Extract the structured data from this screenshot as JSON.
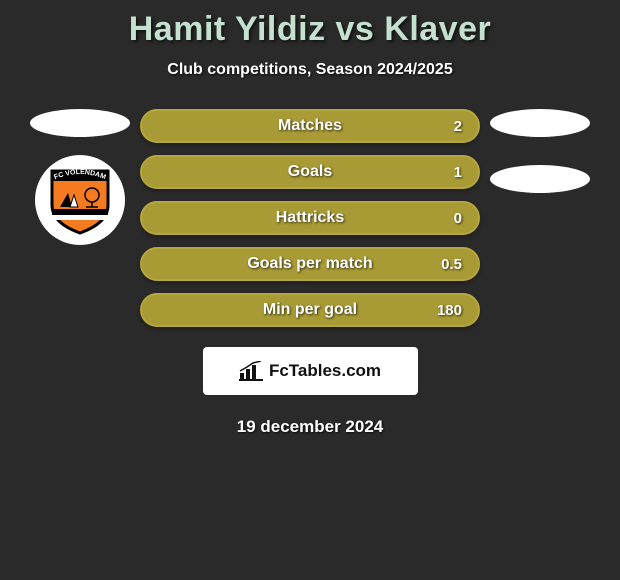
{
  "title": "Hamit Yildiz vs Klaver",
  "subtitle": "Club competitions, Season 2024/2025",
  "date": "19 december 2024",
  "footer_brand": "FcTables.com",
  "club_badge": {
    "arc_text": "FC VOLENDAM",
    "bg_color": "#ffffff",
    "shield_outer": "#000000",
    "shield_fill": "#f47b20",
    "stripe_top": "#000000",
    "stripe_bottom": "#ffffff"
  },
  "colors": {
    "page_bg": "#2a2a2a",
    "title_color": "#c4e0cf",
    "text_color": "#ffffff",
    "ellipse_color": "#ffffff",
    "footer_bg": "#ffffff",
    "footer_text": "#111111"
  },
  "bars": [
    {
      "label": "Matches",
      "value": "2",
      "fill": "#a89a35",
      "border": "#b6a73d"
    },
    {
      "label": "Goals",
      "value": "1",
      "fill": "#a89a35",
      "border": "#b6a73d"
    },
    {
      "label": "Hattricks",
      "value": "0",
      "fill": "#a89a35",
      "border": "#b6a73d"
    },
    {
      "label": "Goals per match",
      "value": "0.5",
      "fill": "#a89a35",
      "border": "#b6a73d"
    },
    {
      "label": "Min per goal",
      "value": "180",
      "fill": "#a89a35",
      "border": "#b6a73d"
    }
  ]
}
